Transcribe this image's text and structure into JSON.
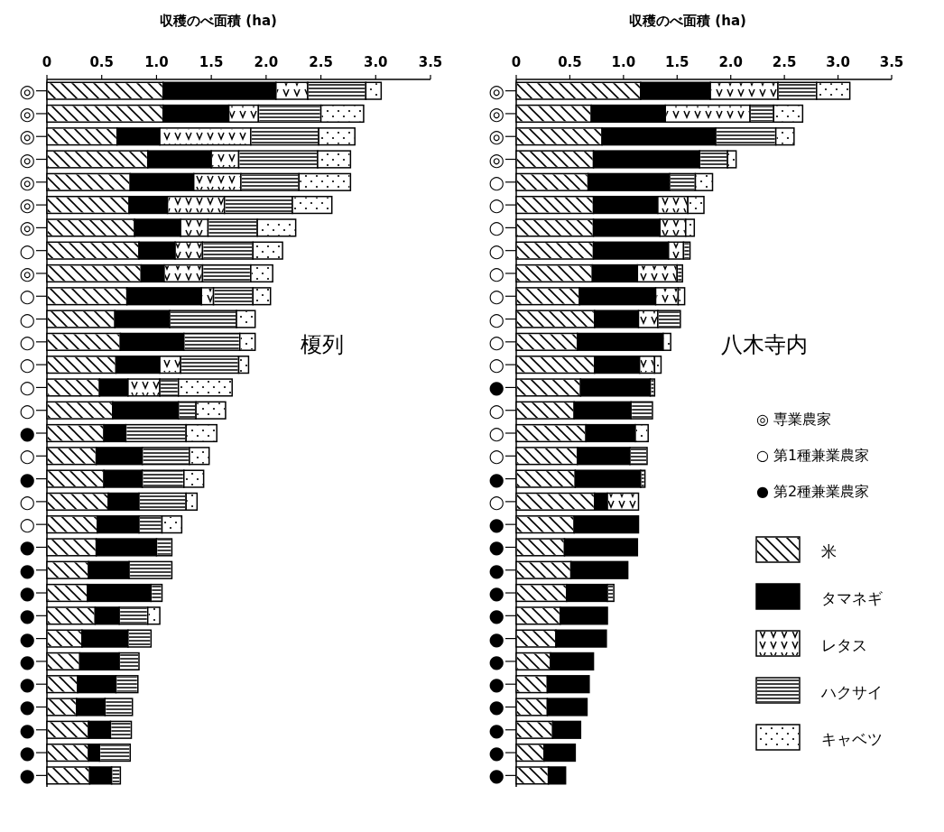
{
  "chart_data": [
    {
      "type": "bar",
      "title": "榎列",
      "xlabel": "収穫のべ面積 (ha)",
      "stacked": true,
      "orientation": "horizontal",
      "categories": [
        "◎",
        "◎",
        "◎",
        "◎",
        "◎",
        "◎",
        "◎",
        "○",
        "◎",
        "○",
        "○",
        "○",
        "○",
        "○",
        "○",
        "●",
        "○",
        "●",
        "○",
        "○",
        "●",
        "●",
        "●",
        "●",
        "●",
        "●",
        "●",
        "●",
        "●",
        "●",
        "●"
      ],
      "xlim": [
        0,
        3.5
      ],
      "xticks": [
        0,
        {
          "value": 0.5,
          "label": "0.5"
        },
        {
          "value": 1,
          "label": "1.0"
        },
        {
          "value": 1.5,
          "label": "1.5"
        },
        {
          "value": 2,
          "label": "2.0"
        },
        {
          "value": 2.5,
          "label": "2.5"
        },
        {
          "value": 3,
          "label": "3.0"
        },
        {
          "value": 3.5,
          "label": "3.5"
        }
      ],
      "legend": false,
      "series": [
        {
          "color": "#ffffff",
          "values": [
            1.06,
            1.06,
            0.64,
            0.92,
            0.76,
            0.75,
            0.8,
            0.84,
            0.86,
            0.73,
            0.62,
            0.67,
            0.63,
            0.48,
            0.6,
            0.52,
            0.45,
            0.52,
            0.56,
            0.46,
            0.45,
            0.38,
            0.37,
            0.44,
            0.32,
            0.3,
            0.28,
            0.27,
            0.38,
            0.38,
            0.39
          ]
        },
        {
          "color": "#000000",
          "values": [
            1.03,
            0.6,
            0.39,
            0.58,
            0.58,
            0.35,
            0.42,
            0.33,
            0.21,
            0.68,
            0.5,
            0.58,
            0.4,
            0.26,
            0.6,
            0.2,
            0.42,
            0.35,
            0.28,
            0.38,
            0.55,
            0.37,
            0.58,
            0.22,
            0.42,
            0.36,
            0.35,
            0.26,
            0.2,
            0.1,
            0.2
          ]
        },
        {
          "color": "#ffffff",
          "values": [
            0.29,
            0.27,
            0.83,
            0.25,
            0.43,
            0.52,
            0.25,
            0.25,
            0.35,
            0.11,
            0,
            0,
            0.19,
            0.29,
            0,
            0,
            0,
            0,
            0,
            0,
            0,
            0,
            0,
            0,
            0,
            0,
            0,
            0,
            0,
            0,
            0
          ]
        },
        {
          "color": "#ffffff",
          "values": [
            0.53,
            0.57,
            0.62,
            0.72,
            0.53,
            0.62,
            0.45,
            0.46,
            0.44,
            0.36,
            0.61,
            0.51,
            0.53,
            0.17,
            0.16,
            0.55,
            0.43,
            0.38,
            0.43,
            0.21,
            0.14,
            0.39,
            0.1,
            0.26,
            0.21,
            0.18,
            0.2,
            0.25,
            0.19,
            0.28,
            0.08
          ]
        },
        {
          "color": "#ffffff",
          "values": [
            0.14,
            0.39,
            0.33,
            0.3,
            0.47,
            0.36,
            0.35,
            0.27,
            0.2,
            0.16,
            0.17,
            0.14,
            0.09,
            0.49,
            0.27,
            0.28,
            0.18,
            0.18,
            0.1,
            0.18,
            0,
            0,
            0,
            0.11,
            0,
            0,
            0,
            0,
            0,
            0,
            0
          ]
        }
      ]
    },
    {
      "type": "bar",
      "title": "八木寺内",
      "xlabel": "収穫のべ面積 (ha)",
      "stacked": true,
      "orientation": "horizontal",
      "categories": [
        "◎",
        "◎",
        "◎",
        "◎",
        "○",
        "○",
        "○",
        "○",
        "○",
        "○",
        "○",
        "○",
        "○",
        "●",
        "○",
        "○",
        "○",
        "●",
        "○",
        "●",
        "●",
        "●",
        "●",
        "●",
        "●",
        "●",
        "●",
        "●",
        "●",
        "●",
        "●"
      ],
      "xlim": [
        0,
        3.5
      ],
      "xticks": [
        0,
        {
          "value": 0.5,
          "label": "0.5"
        },
        {
          "value": 1,
          "label": "1.0"
        },
        {
          "value": 1.5,
          "label": "1.5"
        },
        {
          "value": 2,
          "label": "2.0"
        },
        {
          "value": 2.5,
          "label": "2.5"
        },
        {
          "value": 3,
          "label": "3.0"
        },
        {
          "value": 3.5,
          "label": "3.5"
        }
      ],
      "legend": "right",
      "annotations": [
        "◎ 専業農家",
        "○ 第1種兼業農家",
        "● 第2種兼業農家"
      ],
      "series": [
        {
          "name": "米",
          "color": "#ffffff",
          "values": [
            1.16,
            0.7,
            0.8,
            0.72,
            0.67,
            0.72,
            0.72,
            0.72,
            0.71,
            0.59,
            0.73,
            0.57,
            0.73,
            0.6,
            0.54,
            0.65,
            0.57,
            0.55,
            0.73,
            0.54,
            0.45,
            0.51,
            0.47,
            0.41,
            0.37,
            0.32,
            0.29,
            0.29,
            0.34,
            0.26,
            0.3
          ]
        },
        {
          "name": "タマネギ",
          "color": "#000000",
          "values": [
            0.65,
            0.69,
            1.06,
            0.99,
            0.76,
            0.6,
            0.62,
            0.7,
            0.42,
            0.71,
            0.41,
            0.8,
            0.42,
            0.65,
            0.53,
            0.46,
            0.49,
            0.61,
            0.12,
            0.6,
            0.68,
            0.53,
            0.38,
            0.44,
            0.47,
            0.4,
            0.39,
            0.37,
            0.26,
            0.29,
            0.16
          ]
        },
        {
          "name": "レタス",
          "color": "#ffffff",
          "values": [
            0.63,
            0.79,
            0,
            0,
            0,
            0.28,
            0.24,
            0.14,
            0.37,
            0.21,
            0.18,
            0,
            0.14,
            0,
            0,
            0,
            0,
            0,
            0.29,
            0,
            0,
            0,
            0,
            0,
            0,
            0,
            0,
            0,
            0,
            0,
            0
          ]
        },
        {
          "name": "ハクサイ",
          "color": "#ffffff",
          "values": [
            0.36,
            0.22,
            0.56,
            0.26,
            0.24,
            0,
            0,
            0.06,
            0.05,
            0,
            0.21,
            0,
            0,
            0.04,
            0.2,
            0,
            0.16,
            0.04,
            0,
            0,
            0,
            0,
            0.06,
            0,
            0,
            0,
            0,
            0,
            0,
            0,
            0
          ]
        },
        {
          "name": "キャベツ",
          "color": "#ffffff",
          "values": [
            0.31,
            0.27,
            0.17,
            0.08,
            0.16,
            0.15,
            0.08,
            0,
            0,
            0.06,
            0,
            0.07,
            0.06,
            0,
            0,
            0.12,
            0,
            0,
            0,
            0,
            0,
            0,
            0,
            0,
            0,
            0,
            0,
            0,
            0,
            0,
            0
          ]
        }
      ]
    }
  ]
}
